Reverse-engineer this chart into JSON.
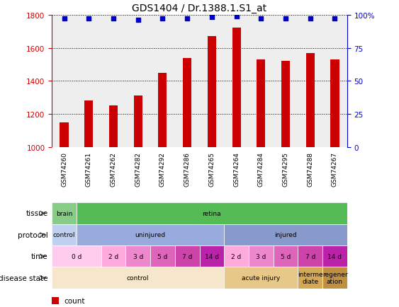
{
  "title": "GDS1404 / Dr.1388.1.S1_at",
  "samples": [
    "GSM74260",
    "GSM74261",
    "GSM74262",
    "GSM74282",
    "GSM74292",
    "GSM74286",
    "GSM74265",
    "GSM74264",
    "GSM74284",
    "GSM74295",
    "GSM74288",
    "GSM74267"
  ],
  "red_values": [
    1150,
    1280,
    1250,
    1310,
    1450,
    1540,
    1670,
    1720,
    1530,
    1520,
    1570,
    1530
  ],
  "blue_values": [
    97,
    97,
    97,
    96,
    97,
    97,
    98,
    99,
    97,
    97,
    97,
    97
  ],
  "ylim_left": [
    1000,
    1800
  ],
  "ylim_right": [
    0,
    100
  ],
  "yticks_left": [
    1000,
    1200,
    1400,
    1600,
    1800
  ],
  "yticks_right": [
    0,
    25,
    50,
    75,
    100
  ],
  "tissue_segments": [
    {
      "text": "brain",
      "start": 0,
      "end": 1,
      "color": "#88cc88"
    },
    {
      "text": "retina",
      "start": 1,
      "end": 12,
      "color": "#55bb55"
    }
  ],
  "protocol_segments": [
    {
      "text": "control",
      "start": 0,
      "end": 1,
      "color": "#c0d0f0"
    },
    {
      "text": "uninjured",
      "start": 1,
      "end": 7,
      "color": "#99aadd"
    },
    {
      "text": "injured",
      "start": 7,
      "end": 12,
      "color": "#8899cc"
    }
  ],
  "time_segments": [
    {
      "text": "0 d",
      "start": 0,
      "end": 2,
      "color": "#ffccee"
    },
    {
      "text": "2 d",
      "start": 2,
      "end": 3,
      "color": "#ffaadd"
    },
    {
      "text": "3 d",
      "start": 3,
      "end": 4,
      "color": "#ee88cc"
    },
    {
      "text": "5 d",
      "start": 4,
      "end": 5,
      "color": "#dd66bb"
    },
    {
      "text": "7 d",
      "start": 5,
      "end": 6,
      "color": "#cc44aa"
    },
    {
      "text": "14 d",
      "start": 6,
      "end": 7,
      "color": "#bb22aa"
    },
    {
      "text": "2 d",
      "start": 7,
      "end": 8,
      "color": "#ffaadd"
    },
    {
      "text": "3 d",
      "start": 8,
      "end": 9,
      "color": "#ee88cc"
    },
    {
      "text": "5 d",
      "start": 9,
      "end": 10,
      "color": "#dd66bb"
    },
    {
      "text": "7 d",
      "start": 10,
      "end": 11,
      "color": "#cc44aa"
    },
    {
      "text": "14 d",
      "start": 11,
      "end": 12,
      "color": "#bb22aa"
    }
  ],
  "disease_segments": [
    {
      "text": "control",
      "start": 0,
      "end": 7,
      "color": "#f5e6cc"
    },
    {
      "text": "acute injury",
      "start": 7,
      "end": 10,
      "color": "#e8c888"
    },
    {
      "text": "interme\ndiate",
      "start": 10,
      "end": 11,
      "color": "#d4a855"
    },
    {
      "text": "regener\nation",
      "start": 11,
      "end": 12,
      "color": "#c09040"
    }
  ],
  "bar_color": "#cc0000",
  "dot_color": "#0000cc",
  "label_color_left": "#cc0000",
  "label_color_right": "#0000cc",
  "plot_bg": "#eeeeee",
  "xtick_bg": "#cccccc",
  "row_labels": [
    "tissue",
    "protocol",
    "time",
    "disease state"
  ]
}
